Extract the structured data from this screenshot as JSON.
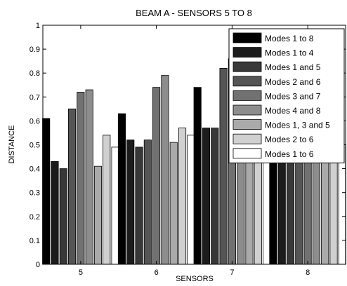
{
  "chart_data": {
    "type": "bar",
    "title": "BEAM A - SENSORS 5 TO 8",
    "xlabel": "SENSORS",
    "ylabel": "DISTANCE",
    "categories": [
      "5",
      "6",
      "7",
      "8"
    ],
    "ylim": [
      0,
      1
    ],
    "yticks": [
      0,
      0.1,
      0.2,
      0.3,
      0.4,
      0.5,
      0.6,
      0.7,
      0.8,
      0.9,
      1
    ],
    "ytick_labels": [
      "0",
      "0.1",
      "0.2",
      "0.3",
      "0.4",
      "0.5",
      "0.6",
      "0.7",
      "0.8",
      "0.9",
      "1"
    ],
    "grid": false,
    "legend_position": "top-right",
    "series": [
      {
        "name": "Modes 1 to 8",
        "color": "#000000",
        "values": [
          0.61,
          0.63,
          0.74,
          0.55
        ]
      },
      {
        "name": "Modes 1 to 4",
        "color": "#1c1c1c",
        "values": [
          0.43,
          0.52,
          0.57,
          0.46
        ]
      },
      {
        "name": "Modes 1 and 5",
        "color": "#383838",
        "values": [
          0.4,
          0.49,
          0.57,
          0.48
        ]
      },
      {
        "name": "Modes 2 and 6",
        "color": "#555555",
        "values": [
          0.65,
          0.52,
          0.82,
          0.52
        ]
      },
      {
        "name": "Modes 3 and 7",
        "color": "#717171",
        "values": [
          0.72,
          0.74,
          0.86,
          0.54
        ]
      },
      {
        "name": "Modes 4 and 8",
        "color": "#8d8d8d",
        "values": [
          0.73,
          0.79,
          0.83,
          0.5
        ]
      },
      {
        "name": "Modes 1, 3 and 5",
        "color": "#aaaaaa",
        "values": [
          0.41,
          0.51,
          0.5,
          0.44
        ]
      },
      {
        "name": "Modes 2 to 6",
        "color": "#d0d0d0",
        "values": [
          0.54,
          0.57,
          0.5,
          0.48
        ]
      },
      {
        "name": "Modes 1 to 6",
        "color": "#ffffff",
        "values": [
          0.49,
          0.54,
          0.5,
          0.5
        ]
      }
    ]
  }
}
